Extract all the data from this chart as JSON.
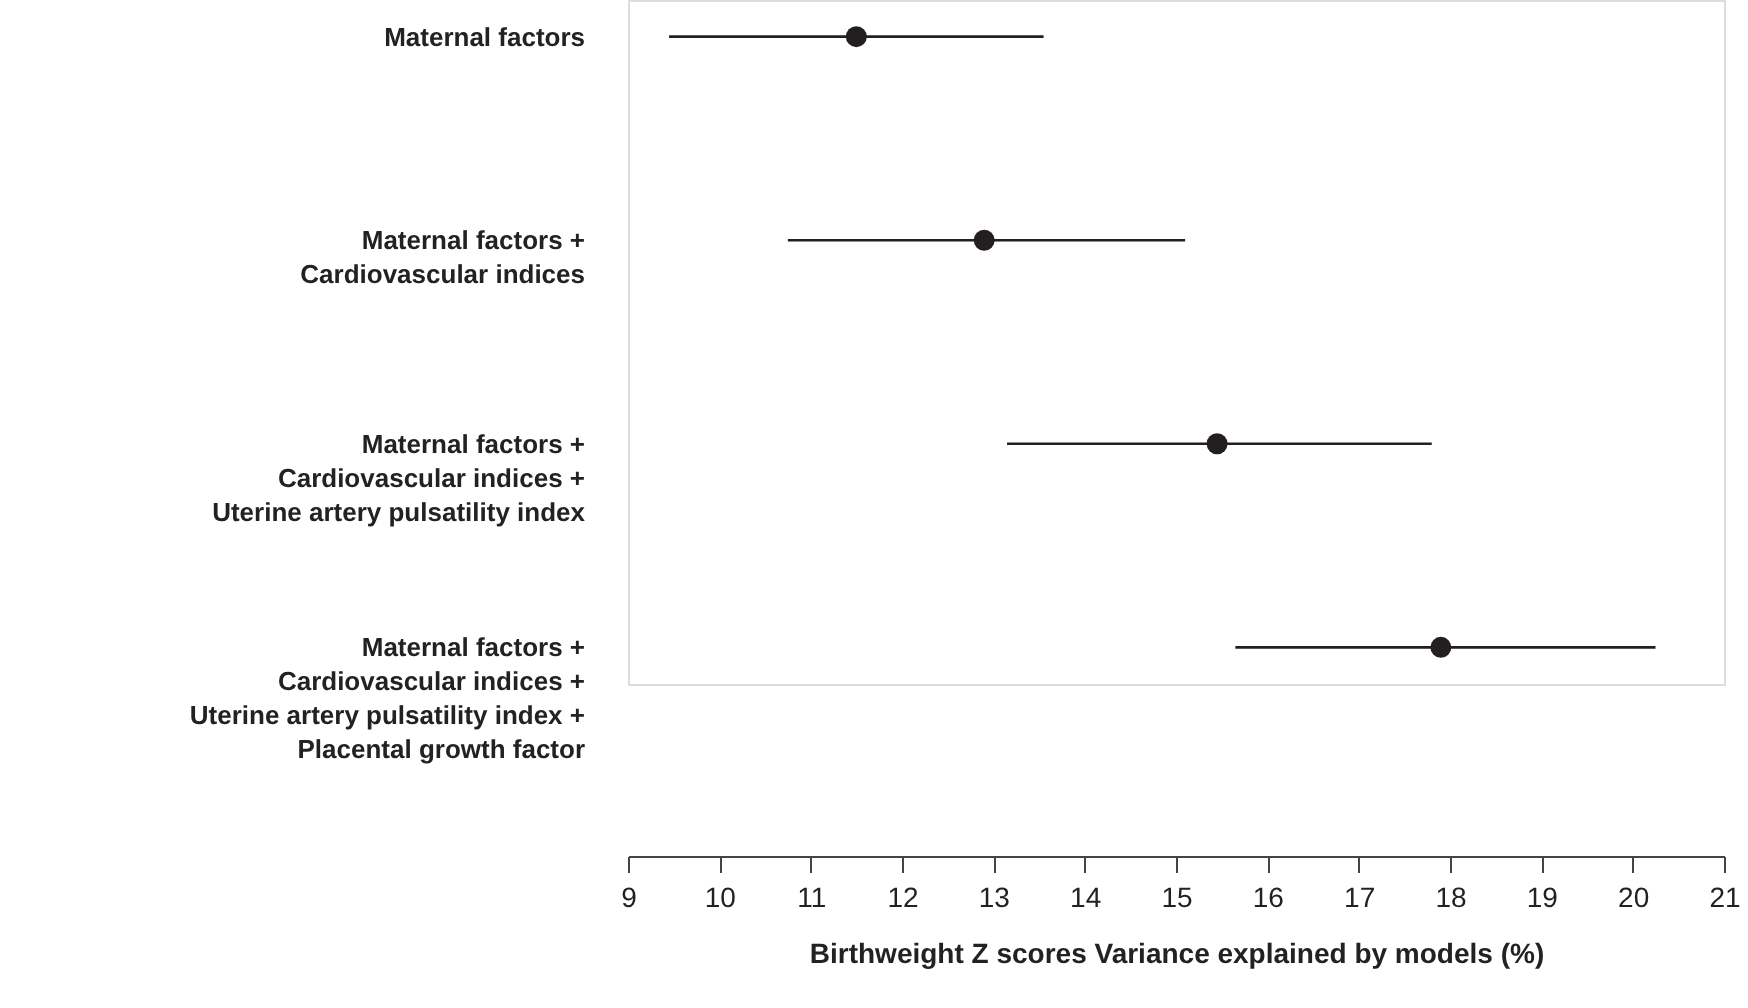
{
  "chart_data": {
    "type": "scatter",
    "orientation": "horizontal",
    "marker": "circle",
    "color": "#231f20",
    "categories": [
      "Maternal factors",
      "Maternal factors +\nCardiovascular indices",
      "Maternal factors +\nCardiovascular indices +\nUterine artery pulsatility index",
      "Maternal factors +\nCardiovascular indices +\nUterine artery pulsatility index +\nPlacental growth factor"
    ],
    "values": [
      11.5,
      12.9,
      15.45,
      17.9
    ],
    "errors": [
      [
        9.45,
        13.55
      ],
      [
        10.75,
        15.1
      ],
      [
        13.15,
        17.8
      ],
      [
        15.65,
        20.25
      ]
    ],
    "xlabel": "Birthweight Z scores Variance explained by models (%)",
    "xlim": [
      9,
      21
    ],
    "xticks": [
      9,
      10,
      11,
      12,
      13,
      14,
      15,
      16,
      17,
      18,
      19,
      20,
      21
    ]
  }
}
